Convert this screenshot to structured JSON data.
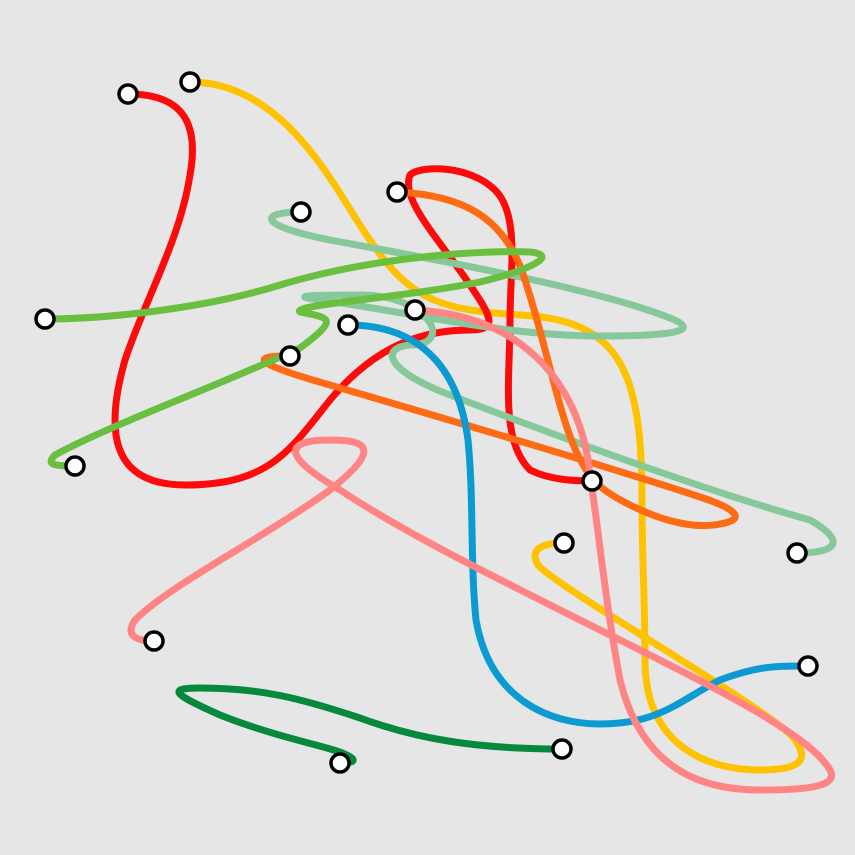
{
  "background": "#e6e6e6",
  "curves": [
    {
      "name": "yellow-curve",
      "color": "#ffc200"
    },
    {
      "name": "red-curve",
      "color": "#ff0a0a"
    },
    {
      "name": "mint-curve",
      "color": "#86c89a"
    },
    {
      "name": "orange-curve",
      "color": "#ff6a14"
    },
    {
      "name": "lime-curve",
      "color": "#6bbf40"
    },
    {
      "name": "blue-curve",
      "color": "#0b9bd2"
    },
    {
      "name": "pink-curve",
      "color": "#ff8585"
    },
    {
      "name": "green-curve",
      "color": "#06893d"
    }
  ]
}
